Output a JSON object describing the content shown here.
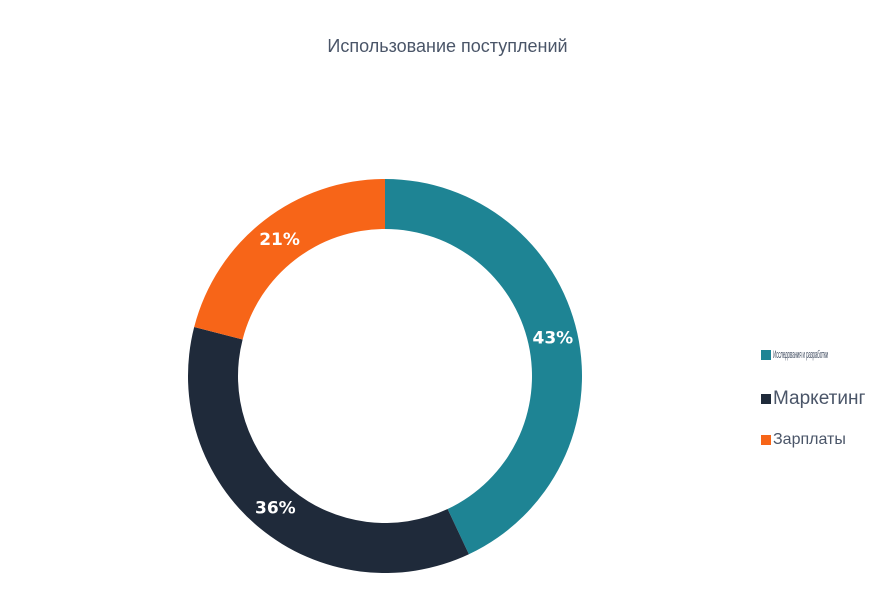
{
  "chart_data": {
    "type": "pie",
    "donut": true,
    "title": "Использование поступлений",
    "categories": [
      "Исследования и разработки",
      "Маркетинг",
      "Зарплаты"
    ],
    "values": [
      43,
      36,
      21
    ],
    "data_labels": [
      "43%",
      "36%",
      "21%"
    ],
    "colors": [
      "#1e8494",
      "#1f2a3a",
      "#f76518"
    ],
    "start_angle_deg": 0,
    "direction": "clockwise",
    "legend_position": "right"
  }
}
